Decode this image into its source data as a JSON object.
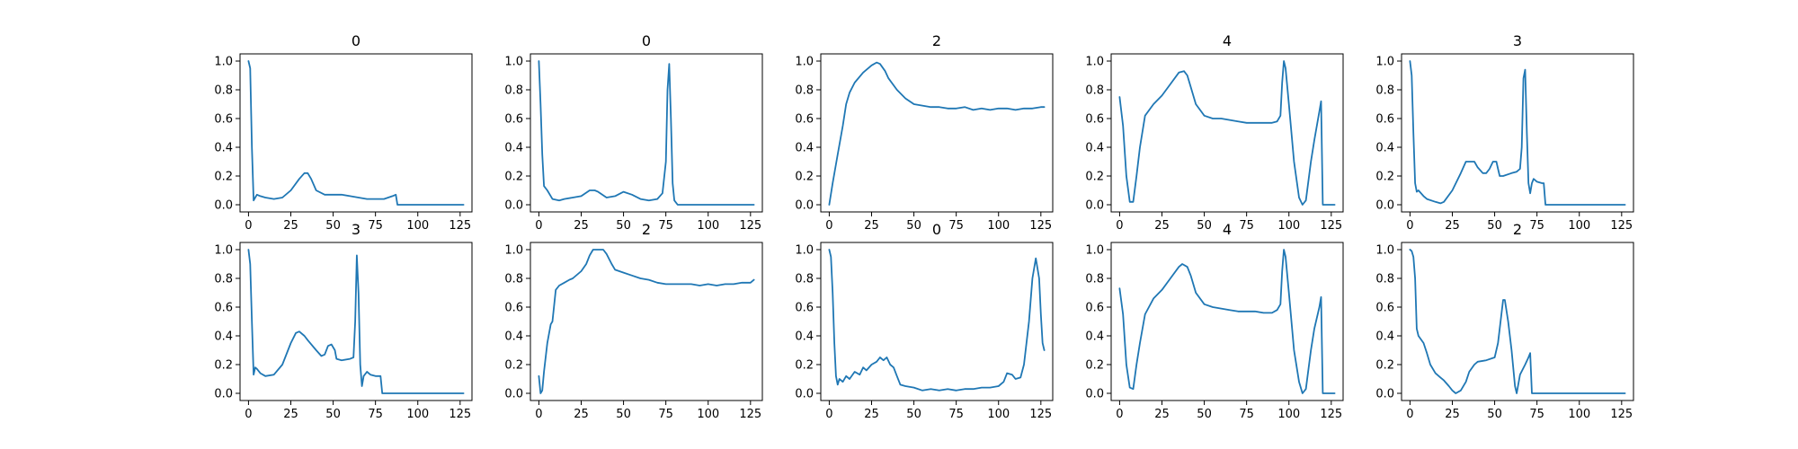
{
  "figure": {
    "line_color": "#1f77b4",
    "xticks": [
      0,
      25,
      50,
      75,
      100,
      125
    ],
    "xtick_labels": [
      "0",
      "25",
      "50",
      "75",
      "100",
      "125"
    ],
    "yticks": [
      0.0,
      0.2,
      0.4,
      0.6,
      0.8,
      1.0
    ],
    "ytick_labels": [
      "0.0",
      "0.2",
      "0.4",
      "0.6",
      "0.8",
      "1.0"
    ]
  },
  "chart_data": [
    {
      "type": "line",
      "title": "0",
      "xlim": [
        -5,
        132
      ],
      "ylim": [
        -0.05,
        1.05
      ],
      "grid": false,
      "series": [
        {
          "x": [
            0,
            1,
            2,
            3,
            4,
            5,
            7,
            10,
            15,
            20,
            25,
            30,
            33,
            35,
            37,
            40,
            45,
            50,
            55,
            60,
            65,
            70,
            75,
            80,
            85,
            87,
            88,
            90,
            100,
            110,
            120,
            127
          ],
          "y": [
            1.0,
            0.95,
            0.4,
            0.03,
            0.05,
            0.07,
            0.06,
            0.05,
            0.04,
            0.05,
            0.1,
            0.18,
            0.22,
            0.22,
            0.18,
            0.1,
            0.07,
            0.07,
            0.07,
            0.06,
            0.05,
            0.04,
            0.04,
            0.04,
            0.06,
            0.07,
            0.0,
            0.0,
            0.0,
            0.0,
            0.0,
            0.0
          ]
        }
      ]
    },
    {
      "type": "line",
      "title": "0",
      "xlim": [
        -5,
        132
      ],
      "ylim": [
        -0.05,
        1.05
      ],
      "grid": false,
      "series": [
        {
          "x": [
            0,
            1,
            2,
            3,
            5,
            8,
            12,
            15,
            20,
            25,
            30,
            33,
            35,
            40,
            45,
            50,
            55,
            60,
            65,
            70,
            73,
            75,
            76,
            77,
            78,
            79,
            80,
            82,
            85,
            90,
            100,
            110,
            120,
            127
          ],
          "y": [
            1.0,
            0.7,
            0.35,
            0.13,
            0.1,
            0.04,
            0.03,
            0.04,
            0.05,
            0.06,
            0.1,
            0.1,
            0.09,
            0.05,
            0.06,
            0.09,
            0.07,
            0.04,
            0.03,
            0.04,
            0.08,
            0.3,
            0.8,
            0.98,
            0.6,
            0.15,
            0.03,
            0.0,
            0.0,
            0.0,
            0.0,
            0.0,
            0.0,
            0.0
          ]
        }
      ]
    },
    {
      "type": "line",
      "title": "2",
      "xlim": [
        -5,
        132
      ],
      "ylim": [
        -0.05,
        1.05
      ],
      "grid": false,
      "series": [
        {
          "x": [
            0,
            2,
            5,
            8,
            10,
            12,
            15,
            20,
            25,
            28,
            30,
            33,
            35,
            40,
            45,
            50,
            55,
            60,
            65,
            70,
            75,
            80,
            85,
            90,
            95,
            100,
            105,
            110,
            115,
            120,
            125,
            127
          ],
          "y": [
            0.0,
            0.15,
            0.35,
            0.55,
            0.7,
            0.78,
            0.85,
            0.92,
            0.97,
            0.99,
            0.98,
            0.93,
            0.88,
            0.8,
            0.74,
            0.7,
            0.69,
            0.68,
            0.68,
            0.67,
            0.67,
            0.68,
            0.66,
            0.67,
            0.66,
            0.67,
            0.67,
            0.66,
            0.67,
            0.67,
            0.68,
            0.68
          ]
        }
      ]
    },
    {
      "type": "line",
      "title": "4",
      "xlim": [
        -5,
        132
      ],
      "ylim": [
        -0.05,
        1.05
      ],
      "grid": false,
      "series": [
        {
          "x": [
            0,
            2,
            4,
            6,
            8,
            10,
            12,
            15,
            20,
            25,
            30,
            35,
            38,
            40,
            42,
            45,
            50,
            55,
            60,
            65,
            70,
            75,
            80,
            85,
            90,
            93,
            95,
            96,
            97,
            98,
            100,
            103,
            106,
            108,
            110,
            113,
            115,
            118,
            119,
            120,
            122,
            125,
            127
          ],
          "y": [
            0.75,
            0.55,
            0.2,
            0.02,
            0.02,
            0.2,
            0.4,
            0.62,
            0.7,
            0.76,
            0.84,
            0.92,
            0.93,
            0.9,
            0.82,
            0.7,
            0.62,
            0.6,
            0.6,
            0.59,
            0.58,
            0.57,
            0.57,
            0.57,
            0.57,
            0.58,
            0.62,
            0.85,
            1.0,
            0.95,
            0.7,
            0.3,
            0.05,
            0.0,
            0.03,
            0.3,
            0.45,
            0.65,
            0.72,
            0.0,
            0.0,
            0.0,
            0.0
          ]
        }
      ]
    },
    {
      "type": "line",
      "title": "3",
      "xlim": [
        -5,
        132
      ],
      "ylim": [
        -0.05,
        1.05
      ],
      "grid": false,
      "series": [
        {
          "x": [
            0,
            1,
            2,
            3,
            4,
            5,
            8,
            10,
            15,
            18,
            20,
            25,
            30,
            33,
            35,
            38,
            40,
            43,
            45,
            47,
            49,
            51,
            52,
            53,
            55,
            60,
            63,
            65,
            66,
            67,
            68,
            69,
            70,
            71,
            72,
            73,
            75,
            78,
            79,
            80,
            85,
            90,
            100,
            110,
            120,
            127
          ],
          "y": [
            1.0,
            0.9,
            0.5,
            0.15,
            0.09,
            0.1,
            0.06,
            0.04,
            0.02,
            0.01,
            0.02,
            0.1,
            0.22,
            0.3,
            0.3,
            0.3,
            0.26,
            0.22,
            0.22,
            0.25,
            0.3,
            0.3,
            0.25,
            0.2,
            0.2,
            0.22,
            0.23,
            0.25,
            0.4,
            0.88,
            0.94,
            0.5,
            0.15,
            0.08,
            0.15,
            0.18,
            0.16,
            0.15,
            0.15,
            0.0,
            0.0,
            0.0,
            0.0,
            0.0,
            0.0,
            0.0
          ]
        }
      ]
    },
    {
      "type": "line",
      "title": "3",
      "xlim": [
        -5,
        132
      ],
      "ylim": [
        -0.05,
        1.05
      ],
      "grid": false,
      "series": [
        {
          "x": [
            0,
            1,
            2,
            3,
            4,
            5,
            7,
            10,
            15,
            20,
            25,
            28,
            30,
            33,
            35,
            40,
            43,
            45,
            47,
            49,
            51,
            52,
            55,
            60,
            62,
            63,
            64,
            65,
            66,
            67,
            68,
            70,
            72,
            75,
            78,
            79,
            80,
            85,
            90,
            100,
            110,
            120,
            127
          ],
          "y": [
            1.0,
            0.9,
            0.5,
            0.13,
            0.18,
            0.17,
            0.14,
            0.12,
            0.13,
            0.2,
            0.35,
            0.42,
            0.43,
            0.4,
            0.37,
            0.3,
            0.26,
            0.27,
            0.33,
            0.34,
            0.3,
            0.24,
            0.23,
            0.24,
            0.25,
            0.5,
            0.96,
            0.7,
            0.2,
            0.05,
            0.12,
            0.15,
            0.13,
            0.12,
            0.12,
            0.0,
            0.0,
            0.0,
            0.0,
            0.0,
            0.0,
            0.0,
            0.0
          ]
        }
      ]
    },
    {
      "type": "line",
      "title": "2",
      "xlim": [
        -5,
        132
      ],
      "ylim": [
        -0.05,
        1.05
      ],
      "grid": false,
      "series": [
        {
          "x": [
            0,
            1,
            2,
            3,
            5,
            7,
            8,
            10,
            12,
            15,
            18,
            20,
            25,
            28,
            30,
            32,
            35,
            38,
            40,
            43,
            45,
            50,
            55,
            60,
            65,
            70,
            75,
            80,
            85,
            90,
            95,
            100,
            105,
            110,
            115,
            120,
            125,
            127
          ],
          "y": [
            0.12,
            0.0,
            0.02,
            0.15,
            0.35,
            0.48,
            0.5,
            0.72,
            0.75,
            0.77,
            0.79,
            0.8,
            0.85,
            0.9,
            0.96,
            1.0,
            1.0,
            1.0,
            0.97,
            0.9,
            0.86,
            0.84,
            0.82,
            0.8,
            0.79,
            0.77,
            0.76,
            0.76,
            0.76,
            0.76,
            0.75,
            0.76,
            0.75,
            0.76,
            0.76,
            0.77,
            0.77,
            0.79
          ]
        }
      ]
    },
    {
      "type": "line",
      "title": "0",
      "xlim": [
        -5,
        132
      ],
      "ylim": [
        -0.05,
        1.05
      ],
      "grid": false,
      "series": [
        {
          "x": [
            0,
            1,
            2,
            3,
            4,
            5,
            6,
            8,
            10,
            12,
            15,
            18,
            20,
            22,
            25,
            28,
            30,
            32,
            34,
            36,
            38,
            40,
            42,
            45,
            50,
            55,
            60,
            65,
            70,
            75,
            80,
            85,
            90,
            95,
            100,
            103,
            105,
            108,
            110,
            113,
            115,
            118,
            120,
            122,
            124,
            125,
            126,
            127
          ],
          "y": [
            1.0,
            0.95,
            0.7,
            0.35,
            0.12,
            0.06,
            0.1,
            0.08,
            0.12,
            0.1,
            0.15,
            0.13,
            0.18,
            0.16,
            0.2,
            0.22,
            0.25,
            0.23,
            0.25,
            0.2,
            0.18,
            0.12,
            0.06,
            0.05,
            0.04,
            0.02,
            0.03,
            0.02,
            0.03,
            0.02,
            0.03,
            0.03,
            0.04,
            0.04,
            0.05,
            0.08,
            0.14,
            0.13,
            0.1,
            0.11,
            0.2,
            0.5,
            0.8,
            0.94,
            0.8,
            0.55,
            0.35,
            0.3
          ]
        }
      ]
    },
    {
      "type": "line",
      "title": "4",
      "xlim": [
        -5,
        132
      ],
      "ylim": [
        -0.05,
        1.05
      ],
      "grid": false,
      "series": [
        {
          "x": [
            0,
            2,
            4,
            6,
            8,
            10,
            12,
            15,
            20,
            25,
            30,
            35,
            37,
            40,
            42,
            45,
            50,
            55,
            60,
            65,
            70,
            75,
            80,
            85,
            90,
            93,
            95,
            96,
            97,
            98,
            100,
            103,
            106,
            108,
            110,
            113,
            115,
            118,
            119,
            120,
            122,
            125,
            127
          ],
          "y": [
            0.73,
            0.55,
            0.2,
            0.04,
            0.03,
            0.2,
            0.35,
            0.55,
            0.66,
            0.72,
            0.8,
            0.88,
            0.9,
            0.88,
            0.82,
            0.7,
            0.62,
            0.6,
            0.59,
            0.58,
            0.57,
            0.57,
            0.57,
            0.56,
            0.56,
            0.58,
            0.62,
            0.85,
            1.0,
            0.95,
            0.7,
            0.3,
            0.08,
            0.0,
            0.03,
            0.3,
            0.45,
            0.6,
            0.67,
            0.0,
            0.0,
            0.0,
            0.0
          ]
        }
      ]
    },
    {
      "type": "line",
      "title": "2",
      "xlim": [
        -5,
        132
      ],
      "ylim": [
        -0.05,
        1.05
      ],
      "grid": false,
      "series": [
        {
          "x": [
            0,
            1,
            2,
            3,
            4,
            5,
            8,
            10,
            12,
            15,
            18,
            20,
            23,
            25,
            27,
            30,
            33,
            35,
            38,
            40,
            45,
            50,
            52,
            54,
            55,
            56,
            58,
            60,
            62,
            63,
            65,
            68,
            70,
            71,
            72,
            75,
            80,
            90,
            100,
            110,
            120,
            127
          ],
          "y": [
            1.0,
            0.99,
            0.95,
            0.8,
            0.45,
            0.4,
            0.35,
            0.28,
            0.2,
            0.14,
            0.11,
            0.09,
            0.05,
            0.02,
            0.0,
            0.02,
            0.08,
            0.15,
            0.2,
            0.22,
            0.23,
            0.25,
            0.35,
            0.55,
            0.65,
            0.65,
            0.5,
            0.3,
            0.05,
            0.0,
            0.13,
            0.2,
            0.25,
            0.28,
            0.0,
            0.0,
            0.0,
            0.0,
            0.0,
            0.0,
            0.0,
            0.0
          ]
        }
      ]
    }
  ]
}
